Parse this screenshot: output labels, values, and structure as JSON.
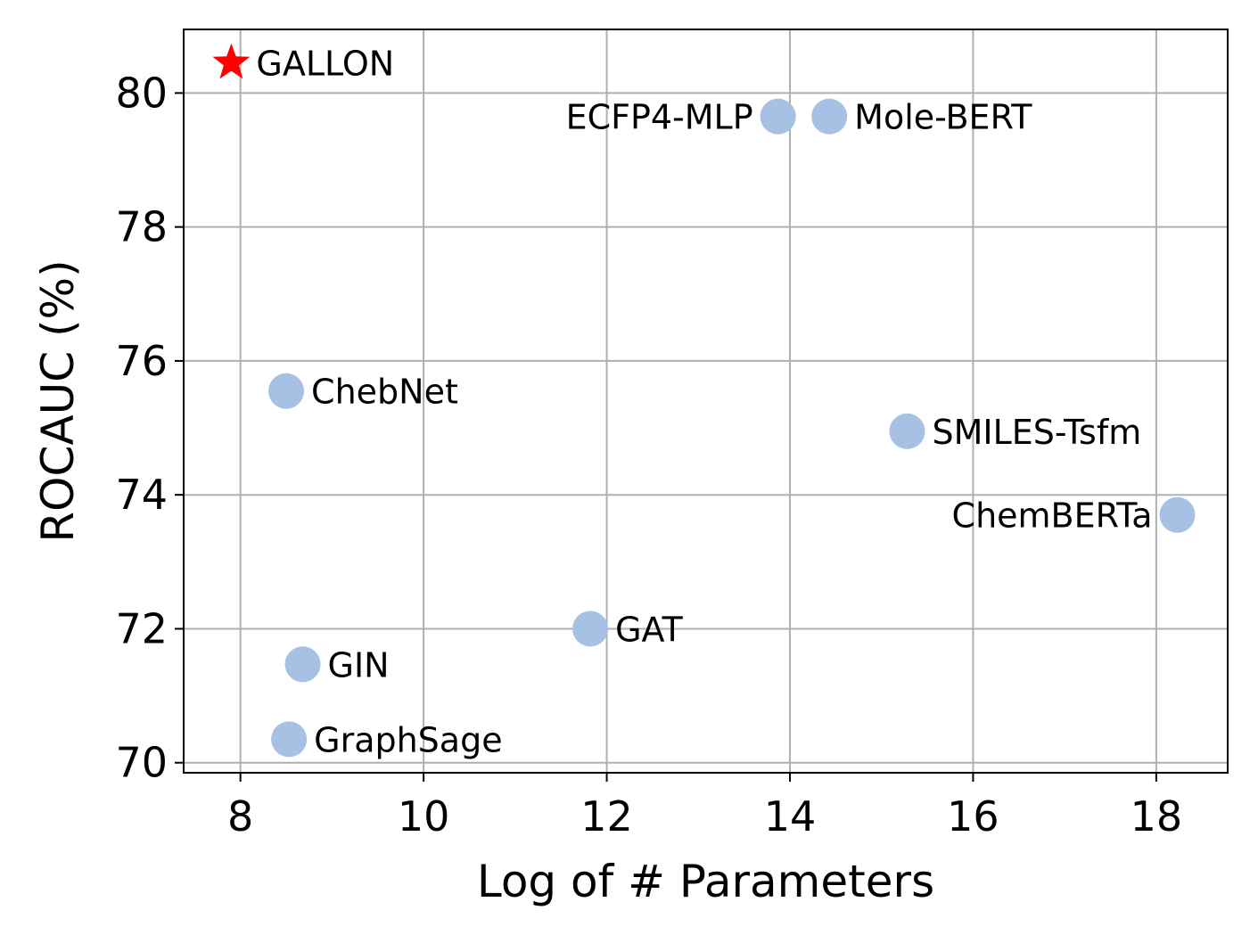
{
  "chart_data": {
    "type": "scatter",
    "title": "",
    "xlabel": "Log of # Parameters",
    "ylabel": "ROCAUC (%)",
    "xlim": [
      7.38,
      18.78
    ],
    "ylim": [
      69.85,
      80.95
    ],
    "xticks": [
      8,
      10,
      12,
      14,
      16,
      18
    ],
    "yticks": [
      70,
      72,
      74,
      76,
      78,
      80
    ],
    "grid": true,
    "colors": {
      "point": "#a6c1e3",
      "highlight": "#ff0000",
      "grid": "#b0b0b0",
      "axis": "#000000"
    },
    "points": [
      {
        "label": "GALLON",
        "x": 7.9,
        "y": 80.45,
        "marker": "star",
        "label_side": "right"
      },
      {
        "label": "ECFP4-MLP",
        "x": 13.87,
        "y": 79.65,
        "marker": "circle",
        "label_side": "left"
      },
      {
        "label": "Mole-BERT",
        "x": 14.43,
        "y": 79.65,
        "marker": "circle",
        "label_side": "right"
      },
      {
        "label": "ChebNet",
        "x": 8.5,
        "y": 75.55,
        "marker": "circle",
        "label_side": "right"
      },
      {
        "label": "SMILES-Tsfm",
        "x": 15.28,
        "y": 74.95,
        "marker": "circle",
        "label_side": "right"
      },
      {
        "label": "ChemBERTa",
        "x": 18.23,
        "y": 73.7,
        "marker": "circle",
        "label_side": "left"
      },
      {
        "label": "GAT",
        "x": 11.82,
        "y": 72.0,
        "marker": "circle",
        "label_side": "right"
      },
      {
        "label": "GIN",
        "x": 8.68,
        "y": 71.47,
        "marker": "circle",
        "label_side": "right"
      },
      {
        "label": "GraphSage",
        "x": 8.53,
        "y": 70.35,
        "marker": "circle",
        "label_side": "right"
      }
    ]
  }
}
